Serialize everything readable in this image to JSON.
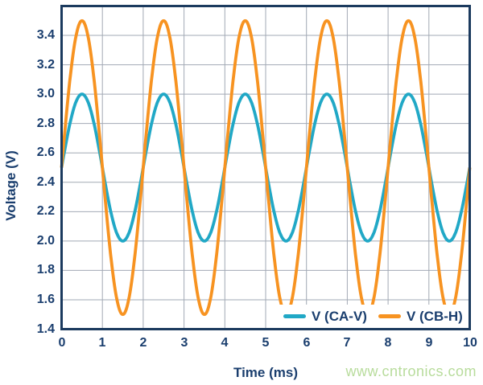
{
  "page": {
    "background": "#ffffff",
    "watermark": "www.cntronics.com"
  },
  "styles": {
    "text_navy": "#1a3e6e",
    "frame_navy": "#1b3a5e",
    "grid_gray": "#a2a9b4",
    "watermark_green": "#b8dc9c",
    "plot_background": "#ffffff"
  },
  "chart_data": {
    "type": "line",
    "title": "",
    "xlabel": "Time (ms)",
    "ylabel": "Voltage (V)",
    "xlim": [
      0,
      10
    ],
    "ylim": [
      1.4,
      3.6
    ],
    "x_tick_values": [
      0,
      1,
      2,
      3,
      4,
      5,
      6,
      7,
      8,
      9,
      10
    ],
    "x_tick_labels": [
      "0",
      "1",
      "2",
      "3",
      "4",
      "5",
      "6",
      "7",
      "8",
      "9",
      "10"
    ],
    "y_tick_values": [
      1.4,
      1.6,
      1.8,
      2.0,
      2.2,
      2.4,
      2.6,
      2.8,
      3.0,
      3.2,
      3.4
    ],
    "y_tick_labels": [
      "1.4",
      "1.6",
      "1.8",
      "2.0",
      "2.2",
      "2.4",
      "2.6",
      "2.8",
      "3.0",
      "3.2",
      "3.4"
    ],
    "grid": true,
    "legend_position": "lower-right-inside",
    "waveform_formula": "v(t) = mean_v + amplitude_v * sin(2*pi*t/period_ms)",
    "series": [
      {
        "name": "V (CA-V)",
        "color": "#21a8c6",
        "waveform": "sine",
        "mean_v": 2.5,
        "amplitude_v": 0.5,
        "min_v": 2.0,
        "max_v": 3.0,
        "period_ms": 2,
        "phase_deg": 0
      },
      {
        "name": "V (CB-H)",
        "color": "#f79321",
        "waveform": "sine",
        "mean_v": 2.5,
        "amplitude_v": 1.0,
        "min_v": 1.5,
        "max_v": 3.5,
        "period_ms": 2,
        "phase_deg": 0
      }
    ]
  }
}
